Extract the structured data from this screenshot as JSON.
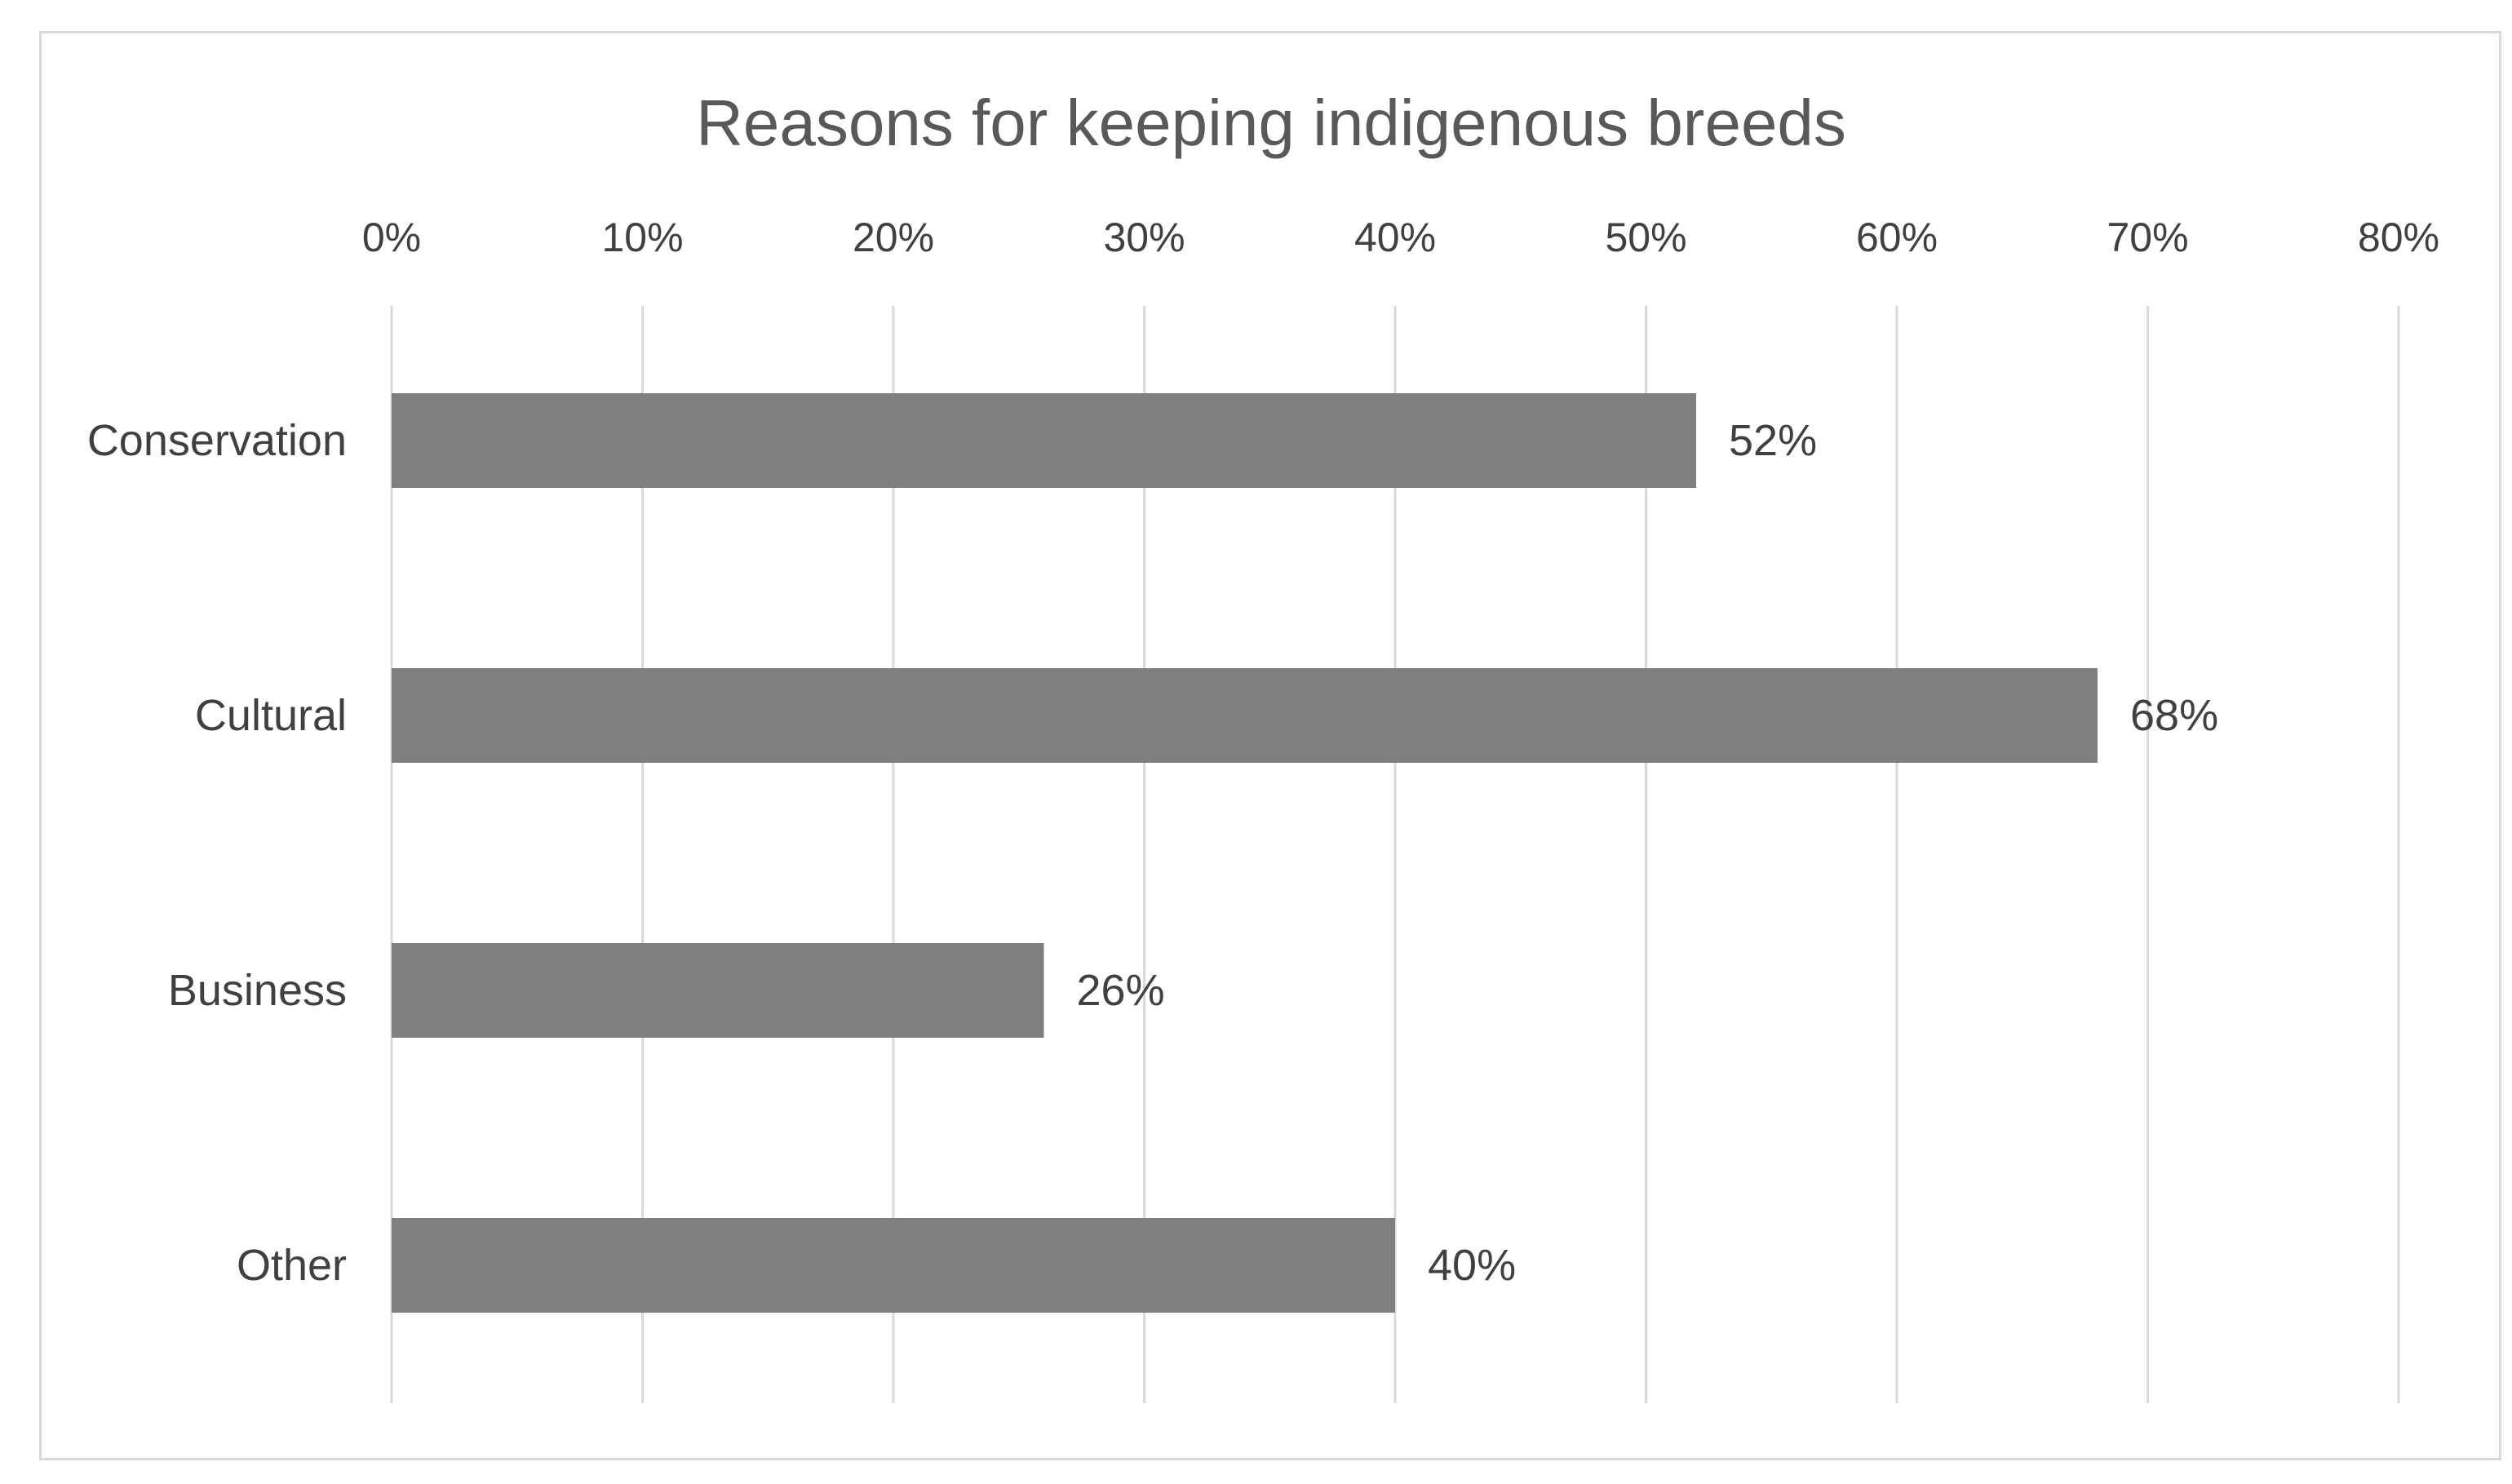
{
  "chart_data": {
    "type": "bar",
    "orientation": "horizontal",
    "title": "Reasons for keeping indigenous breeds",
    "categories": [
      "Conservation",
      "Cultural",
      "Business",
      "Other"
    ],
    "values": [
      52,
      68,
      26,
      40
    ],
    "value_labels": [
      "52%",
      "68%",
      "26%",
      "40%"
    ],
    "xlim": [
      0,
      80
    ],
    "x_ticks": [
      0,
      10,
      20,
      30,
      40,
      50,
      60,
      70,
      80
    ],
    "x_tick_labels": [
      "0%",
      "10%",
      "20%",
      "30%",
      "40%",
      "50%",
      "60%",
      "70%",
      "80%"
    ],
    "x_axis_position": "top",
    "grid": true,
    "legend": "none",
    "bar_color": "#7f7f7f",
    "grid_color": "#d9d9d9",
    "text_color": "#404040",
    "title_color": "#595959"
  }
}
